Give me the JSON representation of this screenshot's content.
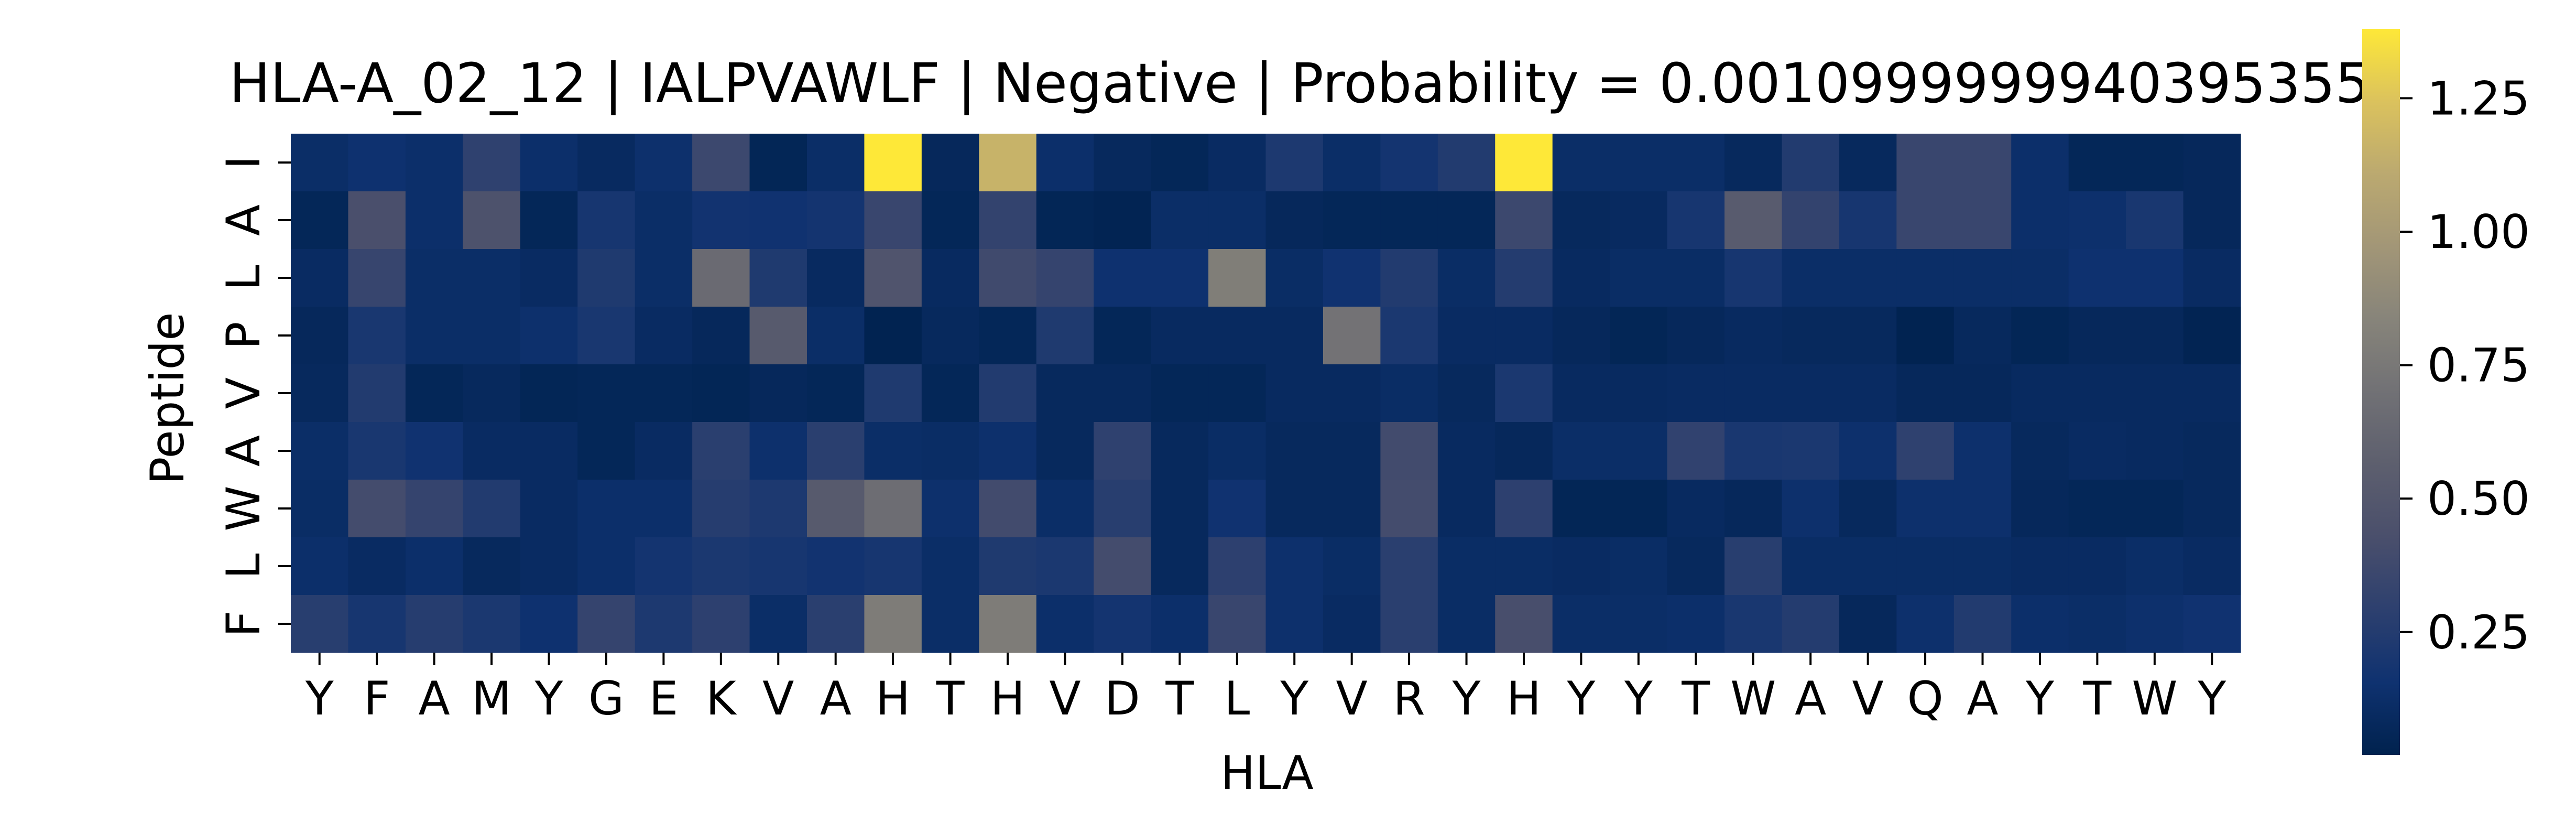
{
  "chart_data": {
    "type": "heatmap",
    "title": "HLA-A_02_12 | IALPVAWLF | Negative | Probability = 0.0010999999940395355",
    "xlabel": "HLA",
    "ylabel": "Peptide",
    "x_categories": [
      "Y",
      "F",
      "A",
      "M",
      "Y",
      "G",
      "E",
      "K",
      "V",
      "A",
      "H",
      "T",
      "H",
      "V",
      "D",
      "T",
      "L",
      "Y",
      "V",
      "R",
      "Y",
      "H",
      "Y",
      "Y",
      "T",
      "W",
      "A",
      "V",
      "Q",
      "A",
      "Y",
      "T",
      "W",
      "Y"
    ],
    "y_categories": [
      "I",
      "A",
      "L",
      "P",
      "V",
      "A",
      "W",
      "L",
      "F"
    ],
    "colormap": "cividis",
    "colorbar": {
      "range": [
        0.02,
        1.38
      ],
      "ticks": [
        0.25,
        0.5,
        0.75,
        1.0,
        1.25
      ],
      "tick_labels": [
        "0.25",
        "0.50",
        "0.75",
        "1.00",
        "1.25"
      ]
    },
    "values": [
      [
        0.12,
        0.15,
        0.13,
        0.3,
        0.13,
        0.09,
        0.14,
        0.36,
        0.05,
        0.12,
        1.38,
        0.07,
        1.16,
        0.13,
        0.08,
        0.06,
        0.1,
        0.22,
        0.12,
        0.18,
        0.24,
        1.38,
        0.12,
        0.12,
        0.12,
        0.08,
        0.24,
        0.08,
        0.35,
        0.35,
        0.13,
        0.06,
        0.06,
        0.07
      ],
      [
        0.06,
        0.43,
        0.13,
        0.45,
        0.06,
        0.19,
        0.12,
        0.17,
        0.16,
        0.18,
        0.35,
        0.06,
        0.32,
        0.05,
        0.04,
        0.12,
        0.12,
        0.07,
        0.06,
        0.06,
        0.06,
        0.36,
        0.08,
        0.09,
        0.19,
        0.53,
        0.32,
        0.19,
        0.35,
        0.35,
        0.13,
        0.14,
        0.2,
        0.07
      ],
      [
        0.1,
        0.34,
        0.12,
        0.12,
        0.1,
        0.23,
        0.12,
        0.65,
        0.23,
        0.09,
        0.47,
        0.09,
        0.38,
        0.33,
        0.15,
        0.15,
        0.79,
        0.11,
        0.16,
        0.24,
        0.11,
        0.25,
        0.09,
        0.11,
        0.11,
        0.19,
        0.12,
        0.12,
        0.12,
        0.12,
        0.12,
        0.15,
        0.15,
        0.1
      ],
      [
        0.07,
        0.2,
        0.12,
        0.12,
        0.14,
        0.2,
        0.1,
        0.07,
        0.52,
        0.12,
        0.03,
        0.08,
        0.06,
        0.23,
        0.06,
        0.09,
        0.09,
        0.09,
        0.71,
        0.21,
        0.1,
        0.1,
        0.07,
        0.05,
        0.07,
        0.09,
        0.08,
        0.08,
        0.03,
        0.08,
        0.05,
        0.07,
        0.07,
        0.04
      ],
      [
        0.08,
        0.24,
        0.06,
        0.08,
        0.05,
        0.06,
        0.06,
        0.05,
        0.07,
        0.06,
        0.23,
        0.06,
        0.24,
        0.08,
        0.08,
        0.06,
        0.06,
        0.09,
        0.09,
        0.11,
        0.08,
        0.21,
        0.09,
        0.09,
        0.1,
        0.1,
        0.1,
        0.1,
        0.07,
        0.07,
        0.09,
        0.09,
        0.09,
        0.09
      ],
      [
        0.12,
        0.2,
        0.16,
        0.1,
        0.1,
        0.06,
        0.1,
        0.28,
        0.14,
        0.28,
        0.12,
        0.11,
        0.14,
        0.08,
        0.3,
        0.08,
        0.11,
        0.08,
        0.08,
        0.39,
        0.09,
        0.07,
        0.12,
        0.12,
        0.31,
        0.2,
        0.21,
        0.14,
        0.3,
        0.14,
        0.08,
        0.1,
        0.09,
        0.08
      ],
      [
        0.11,
        0.4,
        0.33,
        0.24,
        0.1,
        0.13,
        0.13,
        0.26,
        0.22,
        0.52,
        0.67,
        0.14,
        0.39,
        0.12,
        0.27,
        0.08,
        0.16,
        0.08,
        0.08,
        0.4,
        0.09,
        0.29,
        0.05,
        0.05,
        0.09,
        0.07,
        0.14,
        0.08,
        0.14,
        0.14,
        0.07,
        0.06,
        0.06,
        0.08
      ],
      [
        0.13,
        0.1,
        0.13,
        0.08,
        0.1,
        0.13,
        0.18,
        0.21,
        0.19,
        0.17,
        0.19,
        0.12,
        0.23,
        0.21,
        0.4,
        0.08,
        0.29,
        0.14,
        0.11,
        0.28,
        0.11,
        0.11,
        0.1,
        0.11,
        0.08,
        0.27,
        0.11,
        0.11,
        0.11,
        0.11,
        0.1,
        0.1,
        0.12,
        0.1
      ],
      [
        0.27,
        0.19,
        0.26,
        0.21,
        0.15,
        0.33,
        0.22,
        0.29,
        0.12,
        0.28,
        0.78,
        0.12,
        0.78,
        0.13,
        0.18,
        0.13,
        0.35,
        0.14,
        0.1,
        0.28,
        0.11,
        0.42,
        0.12,
        0.12,
        0.13,
        0.2,
        0.25,
        0.07,
        0.14,
        0.24,
        0.13,
        0.12,
        0.14,
        0.16
      ]
    ]
  }
}
